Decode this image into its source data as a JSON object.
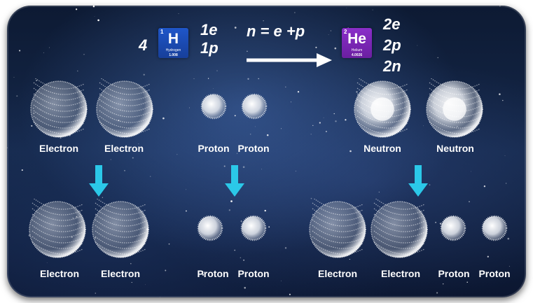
{
  "equation": {
    "coefficient": "4",
    "hydrogen": {
      "number": "1",
      "symbol": "H",
      "name": "Hydrogen",
      "mass": "1.008",
      "color": "#1f56c9"
    },
    "helium": {
      "number": "2",
      "symbol": "He",
      "name": "Helium",
      "mass": "4.0026",
      "color": "#8a2ec9"
    },
    "h_composition": [
      "1e",
      "1p"
    ],
    "relation": "n = e +p",
    "he_composition": [
      "2e",
      "2p",
      "2n"
    ]
  },
  "top_row": [
    "Electron",
    "Electron",
    "Proton",
    "Proton",
    "Neutron",
    "Neutron"
  ],
  "bottom_row": [
    "Electron",
    "Electron",
    "Proton",
    "Proton",
    "Electron",
    "Electron",
    "Proton",
    "Proton"
  ],
  "colors": {
    "arrow": "#2bc8e8",
    "particle": "#ffffff"
  }
}
